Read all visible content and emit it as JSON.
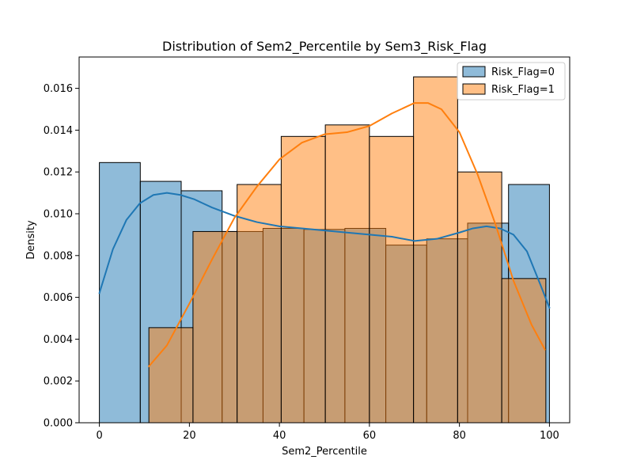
{
  "chart_data": {
    "type": "histogram",
    "title": "Distribution of Sem2_Percentile by Sem3_Risk_Flag",
    "xlabel": "Sem2_Percentile",
    "ylabel": "Density",
    "xlim": [
      -4.5,
      104.5
    ],
    "ylim": [
      0,
      0.0175
    ],
    "xticks": [
      0,
      20,
      40,
      60,
      80,
      100
    ],
    "xtick_labels": [
      "0",
      "20",
      "40",
      "60",
      "80",
      "100"
    ],
    "yticks": [
      0,
      0.002,
      0.004,
      0.006,
      0.008,
      0.01,
      0.012,
      0.014,
      0.016
    ],
    "ytick_labels": [
      "0.000",
      "0.002",
      "0.004",
      "0.006",
      "0.008",
      "0.010",
      "0.012",
      "0.014",
      "0.016"
    ],
    "grid": false,
    "legend_position": "top-right",
    "colors": {
      "risk0_fill": "#1f77b4",
      "risk0_line": "#1f77b4",
      "risk1_fill": "#ff7f0e",
      "risk1_line": "#ff7f0e",
      "edge": "#000000"
    },
    "series": [
      {
        "name": "Risk_Flag=0",
        "bin_edges": [
          0,
          9.09,
          18.18,
          27.27,
          36.36,
          45.45,
          54.55,
          63.64,
          72.73,
          81.82,
          90.91,
          100
        ],
        "densities": [
          0.01245,
          0.01155,
          0.0111,
          0.00915,
          0.0093,
          0.00925,
          0.0093,
          0.0085,
          0.0088,
          0.00955,
          0.0114
        ],
        "kde_x": [
          0,
          3,
          6,
          9,
          12,
          15,
          18,
          21,
          25,
          30,
          35,
          40,
          45,
          50,
          55,
          60,
          65,
          70,
          75,
          80,
          83,
          86,
          89,
          92,
          95,
          98,
          100
        ],
        "kde_y": [
          0.0062,
          0.0083,
          0.0097,
          0.0105,
          0.0109,
          0.011,
          0.0109,
          0.0107,
          0.0103,
          0.0099,
          0.0096,
          0.0094,
          0.0093,
          0.0092,
          0.0091,
          0.009,
          0.0089,
          0.0087,
          0.0088,
          0.0091,
          0.0093,
          0.0094,
          0.0093,
          0.009,
          0.0082,
          0.0066,
          0.0055
        ]
      },
      {
        "name": "Risk_Flag=1",
        "bin_edges": [
          11,
          20.8,
          30.6,
          40.4,
          50.2,
          60.0,
          69.8,
          79.6,
          89.4,
          99.2
        ],
        "densities": [
          0.00455,
          0.00915,
          0.0114,
          0.0137,
          0.01425,
          0.0137,
          0.01655,
          0.012,
          0.0069
        ],
        "kde_x": [
          11,
          15,
          20,
          25,
          30,
          35,
          40,
          45,
          50,
          55,
          60,
          65,
          70,
          73,
          76,
          80,
          84,
          88,
          92,
          96,
          99
        ],
        "kde_y": [
          0.0027,
          0.0037,
          0.0057,
          0.0078,
          0.0098,
          0.0113,
          0.0126,
          0.0134,
          0.0138,
          0.0139,
          0.0142,
          0.0148,
          0.0153,
          0.0153,
          0.015,
          0.0139,
          0.0119,
          0.0095,
          0.0068,
          0.0047,
          0.0035
        ]
      }
    ]
  }
}
